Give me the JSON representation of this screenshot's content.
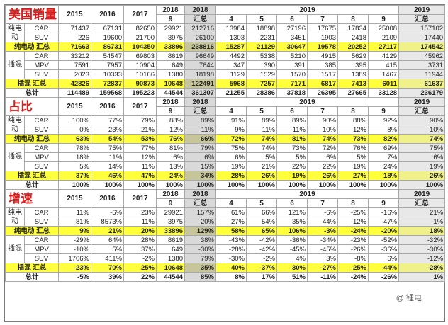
{
  "watermark": "@ 锂电",
  "col_years": [
    "2015",
    "2016",
    "2017",
    "2018",
    "2018",
    "2019"
  ],
  "sections": [
    {
      "title": "美国销量",
      "header": {
        "y2015": "2015",
        "y2016": "2016",
        "y2017": "2017",
        "y2018": "2018",
        "m9": "9",
        "y2018t": "2018",
        "sum": "汇总",
        "y2019": "2019",
        "months": [
          "4",
          "5",
          "6",
          "7",
          "8",
          "9"
        ],
        "y2019t": "2019"
      },
      "groups": [
        {
          "name": "纯电动",
          "rows": [
            {
              "label": "CAR",
              "cells": [
                "71437",
                "67131",
                "82650",
                "29921",
                "212716",
                "13984",
                "18898",
                "27196",
                "17675",
                "17834",
                "25008",
                "157102"
              ]
            },
            {
              "label": "SUV",
              "cells": [
                "226",
                "19600",
                "21700",
                "3975",
                "26100",
                "1303",
                "2231",
                "3451",
                "1903",
                "2418",
                "2109",
                "17440"
              ]
            }
          ],
          "subtotal": {
            "label": "纯电动 汇总",
            "cells": [
              "71663",
              "86731",
              "104350",
              "33896",
              "238816",
              "15287",
              "21129",
              "30647",
              "19578",
              "20252",
              "27117",
              "174542"
            ]
          }
        },
        {
          "name": "插混",
          "rows": [
            {
              "label": "CAR",
              "cells": [
                "33212",
                "54547",
                "69803",
                "8619",
                "96649",
                "4492",
                "5338",
                "5210",
                "4915",
                "5629",
                "4129",
                "45962"
              ]
            },
            {
              "label": "MPV",
              "cells": [
                "7591",
                "7957",
                "10904",
                "649",
                "7644",
                "347",
                "390",
                "391",
                "385",
                "395",
                "415",
                "3731"
              ]
            },
            {
              "label": "SUV",
              "cells": [
                "2023",
                "10333",
                "10166",
                "1380",
                "18198",
                "1129",
                "1529",
                "1570",
                "1517",
                "1389",
                "1467",
                "11944"
              ]
            }
          ],
          "subtotal": {
            "label": "插混 汇总",
            "cells": [
              "42826",
              "72837",
              "90873",
              "10648",
              "122491",
              "5968",
              "7257",
              "7171",
              "6817",
              "7413",
              "6011",
              "61637"
            ]
          }
        }
      ],
      "total": {
        "label": "总计",
        "cells": [
          "114489",
          "159568",
          "195223",
          "44544",
          "361307",
          "21255",
          "28386",
          "37818",
          "26395",
          "27665",
          "33128",
          "236179"
        ]
      }
    },
    {
      "title": "占比",
      "header": {
        "y2015": "2015",
        "y2016": "2016",
        "y2017": "2017",
        "y2018": "2018",
        "m9": "9",
        "y2018t": "2018",
        "sum": "汇总",
        "y2019": "2019",
        "months": [
          "4",
          "5",
          "6",
          "7",
          "8",
          "9"
        ],
        "y2019t": "2019"
      },
      "groups": [
        {
          "name": "纯电动",
          "rows": [
            {
              "label": "CAR",
              "cells": [
                "100%",
                "77%",
                "79%",
                "88%",
                "89%",
                "91%",
                "89%",
                "89%",
                "90%",
                "88%",
                "92%",
                "90%"
              ]
            },
            {
              "label": "SUV",
              "cells": [
                "0%",
                "23%",
                "21%",
                "12%",
                "11%",
                "9%",
                "11%",
                "11%",
                "10%",
                "12%",
                "8%",
                "10%"
              ]
            }
          ],
          "subtotal": {
            "label": "纯电动 汇总",
            "cells": [
              "63%",
              "54%",
              "53%",
              "76%",
              "66%",
              "72%",
              "74%",
              "81%",
              "74%",
              "73%",
              "82%",
              "74%"
            ]
          }
        },
        {
          "name": "插混",
          "rows": [
            {
              "label": "CAR",
              "cells": [
                "78%",
                "75%",
                "77%",
                "81%",
                "79%",
                "75%",
                "74%",
                "73%",
                "72%",
                "76%",
                "69%",
                "75%"
              ]
            },
            {
              "label": "MPV",
              "cells": [
                "18%",
                "11%",
                "12%",
                "6%",
                "6%",
                "6%",
                "5%",
                "5%",
                "6%",
                "5%",
                "7%",
                "6%"
              ]
            },
            {
              "label": "SUV",
              "cells": [
                "5%",
                "14%",
                "11%",
                "13%",
                "15%",
                "19%",
                "21%",
                "22%",
                "22%",
                "19%",
                "24%",
                "19%"
              ]
            }
          ],
          "subtotal": {
            "label": "插混 汇总",
            "cells": [
              "37%",
              "46%",
              "47%",
              "24%",
              "34%",
              "28%",
              "26%",
              "19%",
              "26%",
              "27%",
              "18%",
              "26%"
            ]
          }
        }
      ],
      "total": {
        "label": "总计",
        "cells": [
          "100%",
          "100%",
          "100%",
          "100%",
          "100%",
          "100%",
          "100%",
          "100%",
          "100%",
          "100%",
          "100%",
          "100%"
        ]
      }
    },
    {
      "title": "增速",
      "header": {
        "y2015": "2015",
        "y2016": "2016",
        "y2017": "2017",
        "y2018": "2018",
        "m9": "9",
        "y2018t": "2018",
        "sum": "汇总",
        "y2019": "2019",
        "months": [
          "4",
          "5",
          "6",
          "7",
          "8",
          "9"
        ],
        "y2019t": "2019"
      },
      "groups": [
        {
          "name": "纯电动",
          "rows": [
            {
              "label": "CAR",
              "cells": [
                "11%",
                "-6%",
                "23%",
                "29921",
                "157%",
                "61%",
                "66%",
                "121%",
                "-6%",
                "-25%",
                "-16%",
                "21%"
              ]
            },
            {
              "label": "SUV",
              "cells": [
                "-81%",
                "8573%",
                "11%",
                "3975",
                "20%",
                "27%",
                "54%",
                "35%",
                "44%",
                "-12%",
                "-47%",
                "-1%"
              ]
            }
          ],
          "subtotal": {
            "label": "纯电动 汇总",
            "cells": [
              "9%",
              "21%",
              "20%",
              "33896",
              "129%",
              "58%",
              "65%",
              "106%",
              "-3%",
              "-24%",
              "-20%",
              "18%"
            ]
          }
        },
        {
          "name": "插混",
          "rows": [
            {
              "label": "CAR",
              "cells": [
                "-29%",
                "64%",
                "28%",
                "8619",
                "38%",
                "-43%",
                "-42%",
                "-36%",
                "-34%",
                "-23%",
                "-52%",
                "-32%"
              ]
            },
            {
              "label": "MPV",
              "cells": [
                "-10%",
                "5%",
                "37%",
                "649",
                "-30%",
                "-28%",
                "-42%",
                "-45%",
                "-45%",
                "-26%",
                "-36%",
                "-30%"
              ]
            },
            {
              "label": "SUV",
              "cells": [
                "1706%",
                "411%",
                "-2%",
                "1380",
                "79%",
                "-30%",
                "-2%",
                "4%",
                "3%",
                "-8%",
                "6%",
                "-12%"
              ]
            }
          ],
          "subtotal": {
            "label": "插混 汇总",
            "cells": [
              "-23%",
              "70%",
              "25%",
              "10648",
              "35%",
              "-40%",
              "-37%",
              "-30%",
              "-27%",
              "-25%",
              "-44%",
              "-28%"
            ]
          }
        }
      ],
      "total": {
        "label": "总计",
        "cells": [
          "-5%",
          "39%",
          "22%",
          "44544",
          "85%",
          "8%",
          "17%",
          "51%",
          "-11%",
          "-24%",
          "-26%",
          "1%"
        ]
      }
    }
  ]
}
